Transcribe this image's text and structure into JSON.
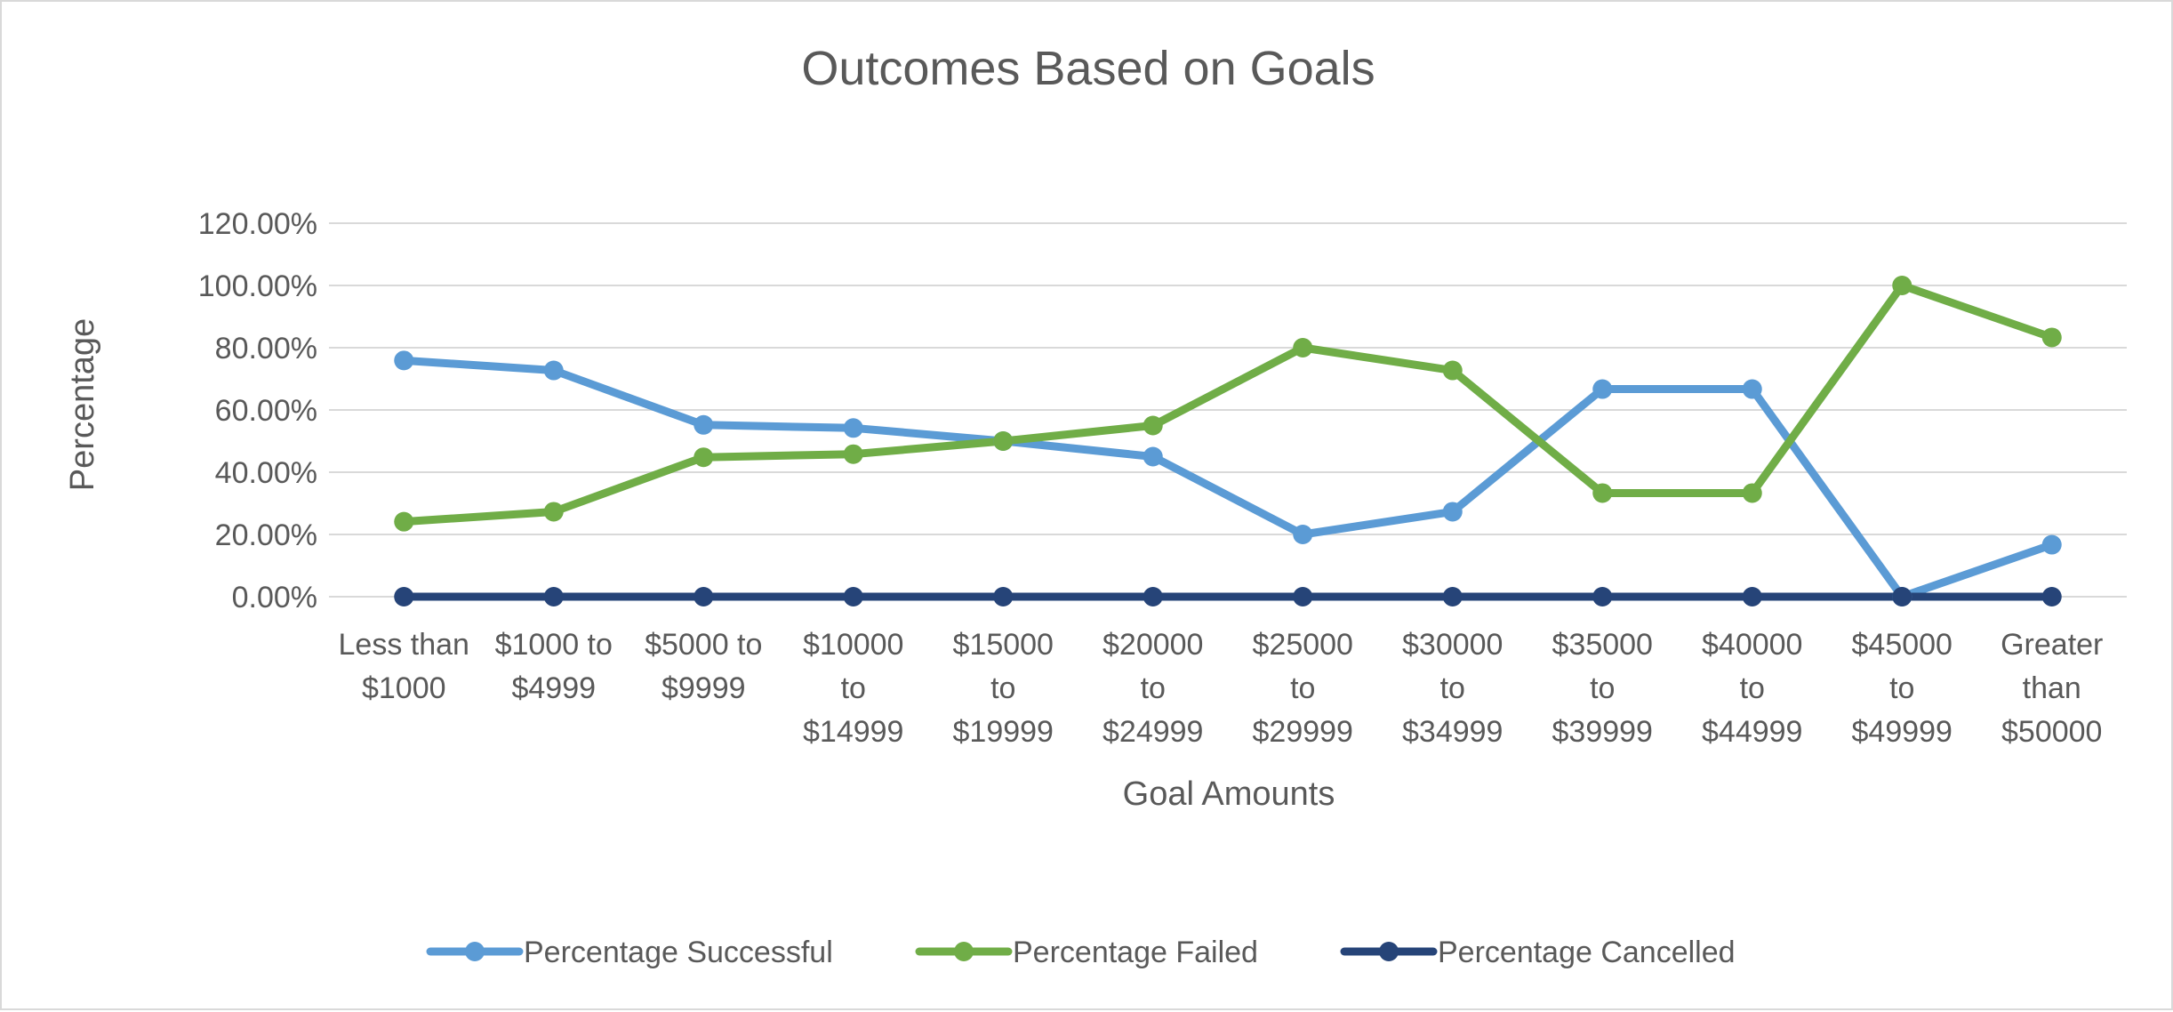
{
  "chart_data": {
    "type": "line",
    "title": "Outcomes Based on Goals",
    "xlabel": "Goal Amounts",
    "ylabel": "Percentage",
    "ylim": [
      0,
      1.2
    ],
    "y_ticks": [
      0,
      0.2,
      0.4,
      0.6,
      0.8,
      1.0,
      1.2
    ],
    "y_tick_labels": [
      "0.00%",
      "20.00%",
      "40.00%",
      "60.00%",
      "80.00%",
      "100.00%",
      "120.00%"
    ],
    "grid": true,
    "legend_position": "bottom",
    "categories": [
      [
        "Less than",
        "$1000"
      ],
      [
        "$1000 to",
        "$4999"
      ],
      [
        "$5000 to",
        "$9999"
      ],
      [
        "$10000",
        "to",
        "$14999"
      ],
      [
        "$15000",
        "to",
        "$19999"
      ],
      [
        "$20000",
        "to",
        "$24999"
      ],
      [
        "$25000",
        "to",
        "$29999"
      ],
      [
        "$30000",
        "to",
        "$34999"
      ],
      [
        "$35000",
        "to",
        "$39999"
      ],
      [
        "$40000",
        "to",
        "$44999"
      ],
      [
        "$45000",
        "to",
        "$49999"
      ],
      [
        "Greater",
        "than",
        "$50000"
      ]
    ],
    "series": [
      {
        "name": "Percentage Successful",
        "color": "#5b9bd5",
        "values": [
          0.759,
          0.727,
          0.552,
          0.542,
          0.5,
          0.45,
          0.2,
          0.273,
          0.667,
          0.667,
          0.0,
          0.167
        ]
      },
      {
        "name": "Percentage Failed",
        "color": "#70ad47",
        "values": [
          0.241,
          0.273,
          0.448,
          0.458,
          0.5,
          0.55,
          0.8,
          0.727,
          0.333,
          0.333,
          1.0,
          0.833
        ]
      },
      {
        "name": "Percentage Cancelled",
        "color": "#264478",
        "values": [
          0,
          0,
          0,
          0,
          0,
          0,
          0,
          0,
          0,
          0,
          0,
          0
        ]
      }
    ]
  }
}
